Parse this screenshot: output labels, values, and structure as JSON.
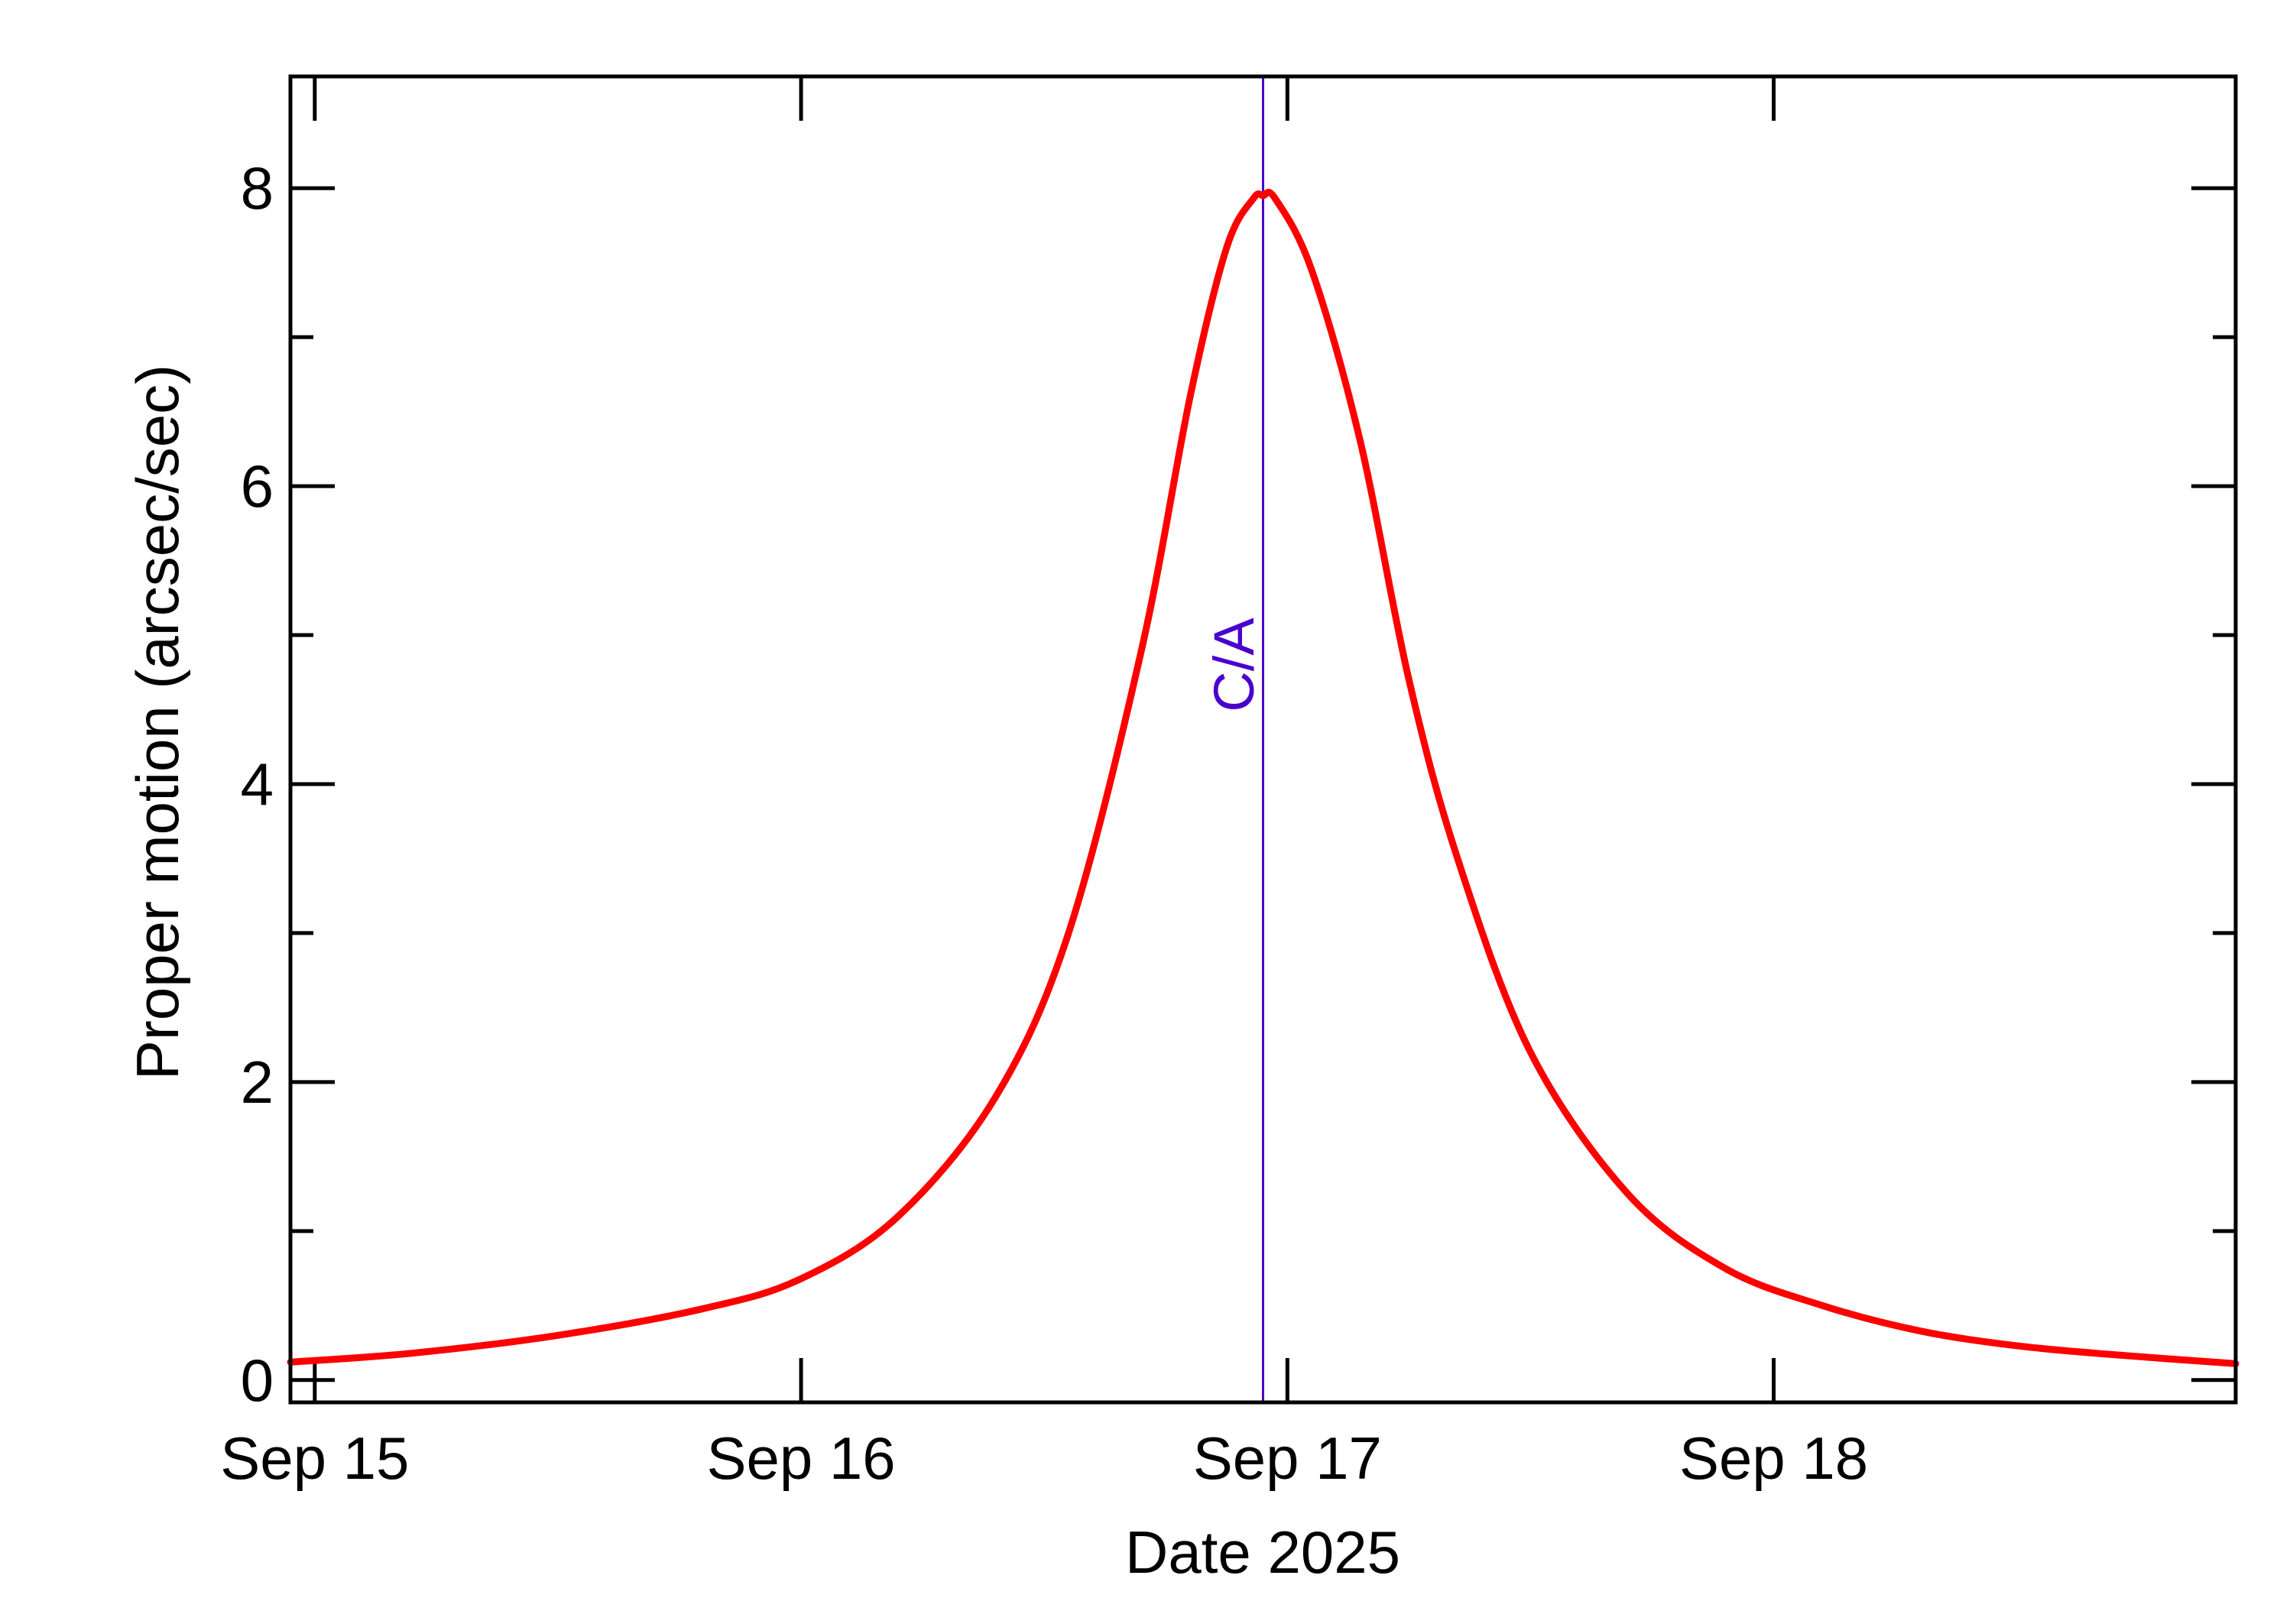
{
  "chart_data": {
    "type": "line",
    "xlabel": "Date 2025",
    "ylabel": "Proper motion (arcsec/sec)",
    "x_tick_labels": [
      "Sep 15",
      "Sep 16",
      "Sep 17",
      "Sep 18"
    ],
    "x_ticks_days": [
      15,
      16,
      17,
      18
    ],
    "xlim_days": [
      14.95,
      18.95
    ],
    "ylim": [
      -0.15,
      8.75
    ],
    "y_tick_labels": [
      "0",
      "2",
      "4",
      "6",
      "8"
    ],
    "y_ticks": [
      0,
      2,
      4,
      6,
      8
    ],
    "y_minor_ticks": [
      1,
      3,
      5,
      7
    ],
    "grid": false,
    "closest_approach": {
      "label": "C/A",
      "x_day": 16.95,
      "color": "#4a00cc"
    },
    "series": [
      {
        "color": "#ff0000",
        "x_days": [
          14.95,
          15.2,
          15.5,
          15.8,
          16.0,
          16.2,
          16.4,
          16.55,
          16.7,
          16.8,
          16.875,
          16.93,
          16.95,
          16.975,
          17.05,
          17.15,
          17.25,
          17.35,
          17.5,
          17.7,
          17.9,
          18.1,
          18.3,
          18.5,
          18.7,
          18.95
        ],
        "y": [
          0.12,
          0.18,
          0.3,
          0.48,
          0.68,
          1.1,
          1.9,
          3.0,
          4.9,
          6.6,
          7.6,
          7.93,
          7.95,
          7.93,
          7.45,
          6.3,
          4.7,
          3.5,
          2.2,
          1.25,
          0.75,
          0.5,
          0.33,
          0.23,
          0.17,
          0.11
        ]
      }
    ]
  }
}
